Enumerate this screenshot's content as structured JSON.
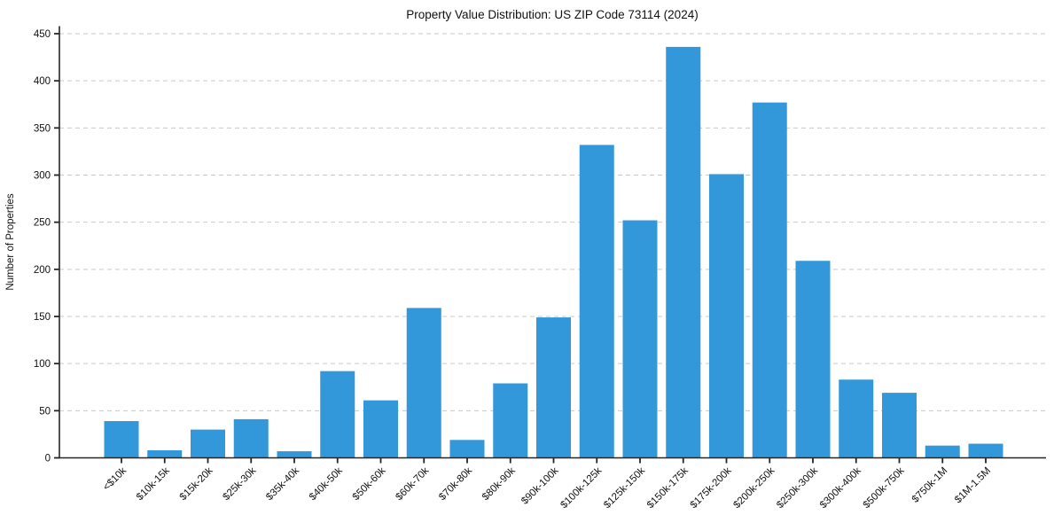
{
  "figure": {
    "background": "#ffffff"
  },
  "chart_data": {
    "type": "bar",
    "title": "Property Value Distribution: US ZIP Code 73114 (2024)",
    "xlabel": "",
    "ylabel": "Number of Properties",
    "categories": [
      "<$10k",
      "$10k-15k",
      "$15k-20k",
      "$25k-30k",
      "$35k-40k",
      "$40k-50k",
      "$50k-60k",
      "$60k-70k",
      "$70k-80k",
      "$80k-90k",
      "$90k-100k",
      "$100k-125k",
      "$125k-150k",
      "$150k-175k",
      "$175k-200k",
      "$200k-250k",
      "$250k-300k",
      "$300k-400k",
      "$500k-750k",
      "$750k-1M",
      "$1M-1.5M"
    ],
    "values": [
      39,
      8,
      30,
      41,
      7,
      92,
      61,
      159,
      19,
      79,
      149,
      332,
      252,
      436,
      301,
      377,
      209,
      83,
      69,
      13,
      15
    ],
    "yticks": [
      0,
      50,
      100,
      150,
      200,
      250,
      300,
      350,
      400,
      450
    ],
    "ylim": [
      0,
      458
    ],
    "grid": "horizontal-dashed",
    "legend": "none",
    "bar_color": "#3398da",
    "grid_color": "#c9c9c9",
    "axis_color": "#262626",
    "text_color": "#111111"
  }
}
